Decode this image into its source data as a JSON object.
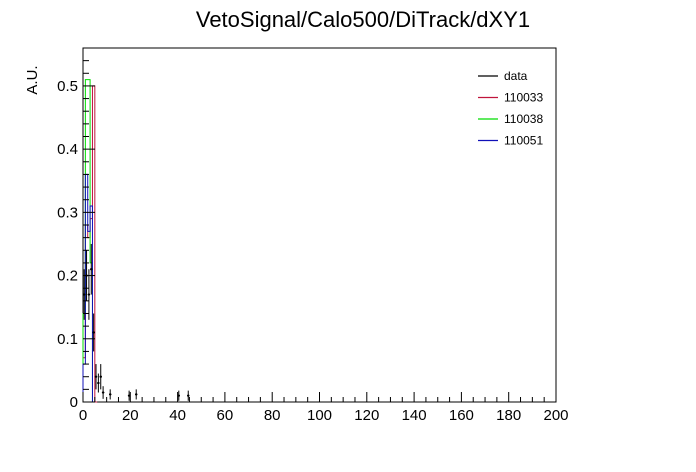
{
  "chart_data": {
    "type": "histogram",
    "title": "VetoSignal/Calo500/DiTrack/dXY1",
    "xlabel": "",
    "ylabel": "A.U.",
    "xlim": [
      0,
      200
    ],
    "ylim": [
      0,
      0.56
    ],
    "x_ticks": [
      0,
      20,
      40,
      60,
      80,
      100,
      120,
      140,
      160,
      180,
      200
    ],
    "y_ticks": [
      0,
      0.1,
      0.2,
      0.3,
      0.4,
      0.5
    ],
    "bin_width": 1,
    "legend_position": "top-right",
    "series": [
      {
        "name": "data",
        "color": "#000000",
        "style": "points-with-errors",
        "points": [
          {
            "x": 0.5,
            "y": 0.17,
            "err": 0.04
          },
          {
            "x": 1.5,
            "y": 0.2,
            "err": 0.04
          },
          {
            "x": 2.5,
            "y": 0.17,
            "err": 0.04
          },
          {
            "x": 3.5,
            "y": 0.21,
            "err": 0.04
          },
          {
            "x": 4.5,
            "y": 0.11,
            "err": 0.03
          },
          {
            "x": 5.5,
            "y": 0.04,
            "err": 0.02
          },
          {
            "x": 6.5,
            "y": 0.03,
            "err": 0.015
          },
          {
            "x": 7.5,
            "y": 0.04,
            "err": 0.02
          },
          {
            "x": 8.5,
            "y": 0.015,
            "err": 0.01
          },
          {
            "x": 11.5,
            "y": 0.012,
            "err": 0.008
          },
          {
            "x": 19.5,
            "y": 0.01,
            "err": 0.008
          },
          {
            "x": 22.5,
            "y": 0.012,
            "err": 0.008
          },
          {
            "x": 40.5,
            "y": 0.01,
            "err": 0.008
          },
          {
            "x": 44.5,
            "y": 0.01,
            "err": 0.008
          }
        ]
      },
      {
        "name": "110033",
        "color": "#c0143c",
        "style": "hist",
        "bins": [
          [
            0,
            0.07
          ],
          [
            1,
            0.28
          ],
          [
            2,
            0.26
          ],
          [
            3,
            0.29
          ],
          [
            4,
            0.5
          ],
          [
            5,
            0.0
          ]
        ]
      },
      {
        "name": "110038",
        "color": "#00dd00",
        "style": "hist",
        "bins": [
          [
            0,
            0.14
          ],
          [
            1,
            0.51
          ],
          [
            2,
            0.51
          ],
          [
            3,
            0.22
          ],
          [
            4,
            0.0
          ]
        ]
      },
      {
        "name": "110051",
        "color": "#1010b8",
        "style": "hist",
        "bins": [
          [
            0,
            0.06
          ],
          [
            1,
            0.36
          ],
          [
            2,
            0.27
          ],
          [
            3,
            0.31
          ],
          [
            4,
            0.0
          ]
        ]
      }
    ]
  }
}
